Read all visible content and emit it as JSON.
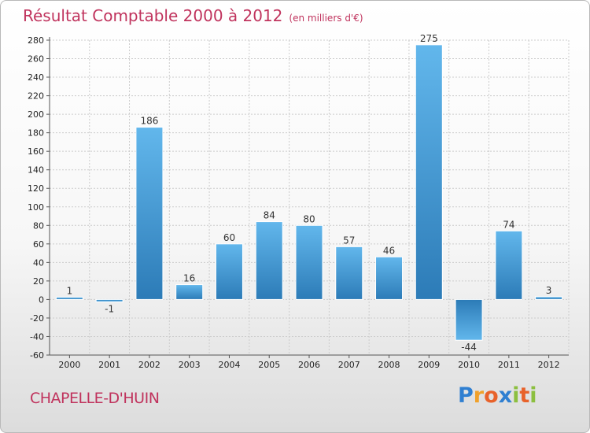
{
  "chart_data": {
    "type": "bar",
    "title": "Résultat Comptable 2000 à 2012",
    "subtitle": "(en milliers d'€)",
    "categories": [
      "2000",
      "2001",
      "2002",
      "2003",
      "2004",
      "2005",
      "2006",
      "2007",
      "2008",
      "2009",
      "2010",
      "2011",
      "2012"
    ],
    "values": [
      1,
      -1,
      186,
      16,
      60,
      84,
      80,
      57,
      46,
      275,
      -44,
      74,
      3
    ],
    "value_labels": [
      "1",
      "-1",
      "186",
      "16",
      "60",
      "84",
      "80",
      "57",
      "46",
      "275",
      "-44",
      "74",
      "3"
    ],
    "ylim": [
      -60,
      280
    ],
    "yticks": [
      -60,
      -40,
      -20,
      0,
      20,
      40,
      60,
      80,
      100,
      120,
      140,
      160,
      180,
      200,
      220,
      240,
      260,
      280
    ],
    "xlabel": "",
    "ylabel": "",
    "grid": true
  },
  "commune": "CHAPELLE-D'HUIN",
  "brand": {
    "letters": [
      "P",
      "r",
      "o",
      "x",
      "i",
      "t",
      "i"
    ],
    "colors": [
      "#2f7fd1",
      "#f0a12b",
      "#e8622a",
      "#2f7fd1",
      "#8cbf3f",
      "#e8622a",
      "#8cbf3f"
    ]
  },
  "colors": {
    "title": "#c0335d",
    "bar_light": "#62b7ec",
    "bar_dark": "#2c7bb7",
    "grid": "#cccccc",
    "axis_text": "#222222"
  }
}
